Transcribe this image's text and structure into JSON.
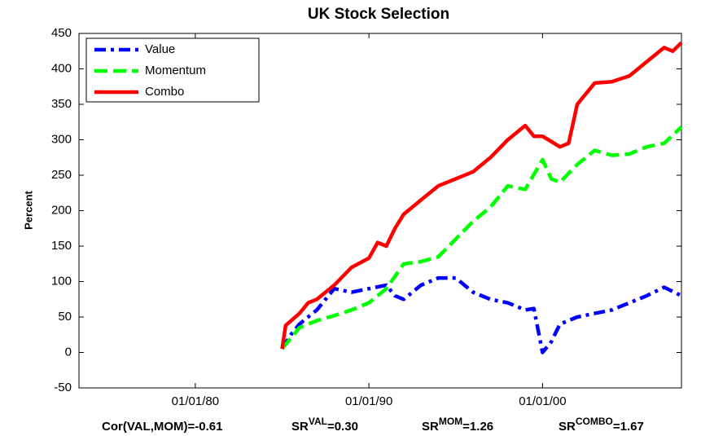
{
  "chart_data": {
    "type": "line",
    "title": "UK Stock Selection",
    "y_label": "Percent",
    "xlim": [
      1973.3,
      2008
    ],
    "ylim": [
      -50,
      450
    ],
    "xticks": [
      {
        "value": 1980,
        "label": "01/01/80"
      },
      {
        "value": 1990,
        "label": "01/01/90"
      },
      {
        "value": 2000,
        "label": "01/01/00"
      }
    ],
    "yticks": [
      -50,
      0,
      50,
      100,
      150,
      200,
      250,
      300,
      350,
      400,
      450
    ],
    "grid": false,
    "legend": "upper left",
    "series": [
      {
        "name": "Value",
        "color": "#0000ff",
        "dash": "dashdot",
        "x": [
          1985,
          1985.5,
          1986,
          1987,
          1988,
          1989,
          1990,
          1991,
          1991.5,
          1992,
          1993,
          1994,
          1995,
          1996,
          1997,
          1998,
          1999,
          1999.5,
          2000,
          2000.5,
          2001,
          2002,
          2003,
          2004,
          2005,
          2006,
          2007,
          2008
        ],
        "values": [
          5,
          25,
          40,
          60,
          90,
          85,
          90,
          95,
          80,
          75,
          95,
          105,
          105,
          85,
          75,
          70,
          60,
          62,
          0,
          15,
          40,
          50,
          55,
          60,
          70,
          80,
          92,
          80
        ]
      },
      {
        "name": "Momentum",
        "color": "#00ff00",
        "dash": "dashed",
        "x": [
          1985,
          1986,
          1987,
          1988,
          1989,
          1990,
          1991,
          1992,
          1993,
          1994,
          1995,
          1996,
          1997,
          1998,
          1999,
          2000,
          2000.5,
          2001,
          2002,
          2003,
          2004,
          2005,
          2006,
          2007,
          2008
        ],
        "values": [
          5,
          35,
          45,
          52,
          60,
          70,
          90,
          125,
          128,
          135,
          160,
          185,
          205,
          235,
          230,
          272,
          245,
          240,
          265,
          285,
          278,
          280,
          290,
          295,
          318
        ]
      },
      {
        "name": "Combo",
        "color": "#ff0000",
        "dash": "solid",
        "x": [
          1985,
          1985.2,
          1986,
          1986.5,
          1987,
          1988,
          1989,
          1990,
          1990.5,
          1991,
          1991.5,
          1992,
          1993,
          1994,
          1995,
          1996,
          1997,
          1998,
          1999,
          1999.5,
          2000,
          2001,
          2001.5,
          2002,
          2003,
          2004,
          2005,
          2006,
          2007,
          2007.5,
          2008
        ],
        "values": [
          5,
          38,
          55,
          70,
          75,
          95,
          120,
          133,
          155,
          150,
          175,
          195,
          215,
          235,
          245,
          255,
          275,
          300,
          320,
          305,
          305,
          290,
          295,
          350,
          380,
          382,
          390,
          410,
          430,
          425,
          437
        ]
      }
    ],
    "annotations": [
      {
        "text": "Cor(VAL,MOM)=-0.61"
      },
      {
        "base": "SR",
        "sup": "VAL",
        "text": "=0.30"
      },
      {
        "base": "SR",
        "sup": "MOM",
        "text": "=1.26"
      },
      {
        "base": "SR",
        "sup": "COMBO",
        "text": "=1.67"
      }
    ]
  }
}
